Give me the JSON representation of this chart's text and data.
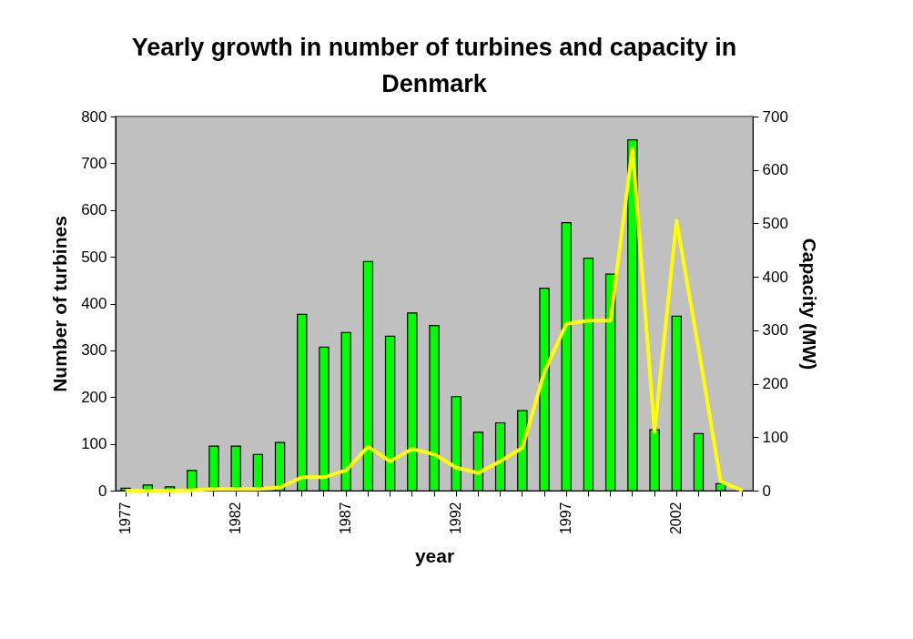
{
  "chart_data": {
    "type": "bar",
    "title": "Yearly growth in number of turbines and capacity in Denmark",
    "xlabel": "year",
    "ylabel": "Number of turbines",
    "y2label": "Capacity (MW)",
    "categories": [
      "1977",
      null,
      null,
      null,
      null,
      "1982",
      null,
      null,
      null,
      null,
      "1987",
      null,
      null,
      null,
      null,
      "1992",
      null,
      null,
      null,
      null,
      "1997",
      null,
      null,
      null,
      null,
      "2002",
      null,
      null,
      null
    ],
    "series": [
      {
        "color": "#00ff00",
        "values": [
          5,
          12,
          8,
          43,
          95,
          95,
          77,
          103,
          377,
          307,
          338,
          490,
          330,
          380,
          353,
          201,
          125,
          145,
          171,
          433,
          573,
          497,
          463,
          750,
          130,
          373,
          122,
          15,
          null
        ]
      },
      {
        "type": "line",
        "axis": "y2",
        "color": "#ffff00",
        "values": [
          0,
          0,
          0,
          1,
          3,
          3,
          3,
          6,
          25,
          25,
          38,
          82,
          55,
          78,
          68,
          43,
          33,
          55,
          80,
          222,
          312,
          318,
          318,
          640,
          110,
          505,
          265,
          17,
          0
        ]
      }
    ],
    "ylim": [
      0,
      800
    ],
    "yticks": [
      0,
      100,
      200,
      300,
      400,
      500,
      600,
      700,
      800
    ],
    "y2lim": [
      0,
      700
    ],
    "y2ticks": [
      0,
      100,
      200,
      300,
      400,
      500,
      600,
      700
    ]
  }
}
